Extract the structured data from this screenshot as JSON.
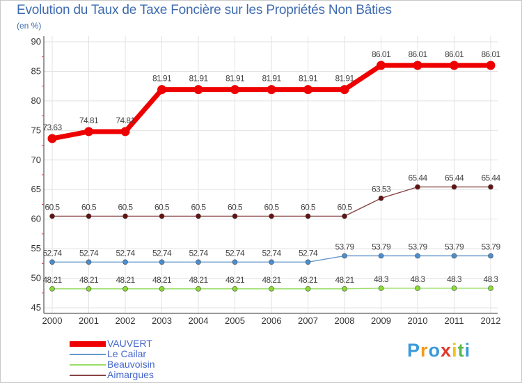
{
  "chart_data": {
    "type": "line",
    "title": "Evolution du Taux de Taxe Foncière sur les Propriétés Non Bâties",
    "unit_label": "(en %)",
    "xlabel": "",
    "ylabel": "",
    "categories": [
      "2000",
      "2001",
      "2002",
      "2003",
      "2004",
      "2005",
      "2006",
      "2007",
      "2008",
      "2009",
      "2010",
      "2011",
      "2012"
    ],
    "ylim": [
      45,
      90
    ],
    "yticks": [
      45,
      50,
      55,
      60,
      65,
      70,
      75,
      80,
      85,
      90
    ],
    "grid": true,
    "legend_position": "bottom-left",
    "series": [
      {
        "name": "VAUVERT",
        "color": "#ee0000",
        "emphasis": true,
        "values": [
          73.63,
          74.81,
          74.81,
          81.91,
          81.91,
          81.91,
          81.91,
          81.91,
          81.91,
          86.01,
          86.01,
          86.01,
          86.01
        ],
        "labels": [
          "73.63",
          "74.81",
          "74.81",
          "81.91",
          "81.91",
          "81.91",
          "81.91",
          "81.91",
          "81.91",
          "86.01",
          "86.01",
          "86.01",
          "86.01"
        ]
      },
      {
        "name": "Le Cailar",
        "color": "#6699cc",
        "marker_color": "#4a8ed0",
        "emphasis": false,
        "values": [
          52.74,
          52.74,
          52.74,
          52.74,
          52.74,
          52.74,
          52.74,
          52.74,
          53.79,
          53.79,
          53.79,
          53.79,
          53.79
        ],
        "labels": [
          "52.74",
          "52.74",
          "52.74",
          "52.74",
          "52.74",
          "52.74",
          "52.74",
          "52.74",
          "53.79",
          "53.79",
          "53.79",
          "53.79",
          "53.79"
        ]
      },
      {
        "name": "Beauvoisin",
        "color": "#99dd66",
        "marker_color": "#88dd33",
        "emphasis": false,
        "values": [
          48.21,
          48.21,
          48.21,
          48.21,
          48.21,
          48.21,
          48.21,
          48.21,
          48.21,
          48.3,
          48.3,
          48.3,
          48.3
        ],
        "labels": [
          "48.21",
          "48.21",
          "48.21",
          "48.21",
          "48.21",
          "48.21",
          "48.21",
          "48.21",
          "48.21",
          "48.3",
          "48.3",
          "48.3",
          "48.3"
        ]
      },
      {
        "name": "Aimargues",
        "color": "#884444",
        "marker_color": "#661111",
        "emphasis": false,
        "values": [
          60.5,
          60.5,
          60.5,
          60.5,
          60.5,
          60.5,
          60.5,
          60.5,
          60.5,
          63.53,
          65.44,
          65.44,
          65.44
        ],
        "labels": [
          "60.5",
          "60.5",
          "60.5",
          "60.5",
          "60.5",
          "60.5",
          "60.5",
          "60.5",
          "60.5",
          "63.53",
          "65.44",
          "65.44",
          "65.44"
        ]
      }
    ]
  },
  "legend": {
    "items": [
      {
        "label": "VAUVERT",
        "color": "#ee0000"
      },
      {
        "label": "Le Cailar",
        "color": "#6699cc"
      },
      {
        "label": "Beauvoisin",
        "color": "#99dd66"
      },
      {
        "label": "Aimargues",
        "color": "#884444"
      }
    ]
  },
  "logo": {
    "text": "Proxiti",
    "colors": [
      "#3a9ad9",
      "#f29a1a",
      "#3a9ad9",
      "#e03a2a",
      "#f2c21a",
      "#59b94a",
      "#3a9ad9"
    ]
  }
}
